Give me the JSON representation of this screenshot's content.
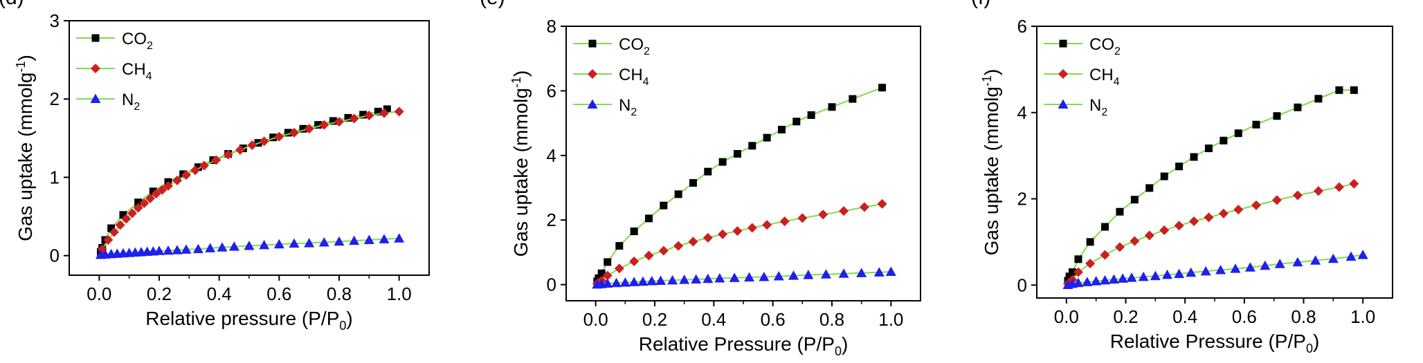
{
  "chart_data": [
    {
      "type": "line",
      "panel_label": "(d)",
      "xlabel": "Relative pressure (P/P",
      "xlabel_sub": "0",
      "xlabel_close": ")",
      "ylabel": "Gas uptake (mmolg",
      "ylabel_sup": "-1",
      "ylabel_close": ")",
      "xlim": [
        -0.1,
        1.1
      ],
      "ylim": [
        -0.25,
        3.0
      ],
      "xticks": [
        "0.0",
        "0.2",
        "0.4",
        "0.6",
        "0.8",
        "1.0"
      ],
      "yticks": [
        "0",
        "1",
        "2",
        "3"
      ],
      "legend_position": "top-left",
      "series": [
        {
          "name": "CO",
          "name_sub": "2",
          "marker": "square",
          "color": "#000000",
          "x": [
            0.005,
            0.01,
            0.02,
            0.04,
            0.08,
            0.13,
            0.18,
            0.23,
            0.28,
            0.33,
            0.38,
            0.43,
            0.48,
            0.53,
            0.58,
            0.63,
            0.68,
            0.73,
            0.78,
            0.83,
            0.88,
            0.93,
            0.96
          ],
          "y": [
            0.05,
            0.1,
            0.2,
            0.35,
            0.52,
            0.68,
            0.82,
            0.94,
            1.04,
            1.13,
            1.22,
            1.3,
            1.37,
            1.44,
            1.51,
            1.57,
            1.62,
            1.67,
            1.72,
            1.76,
            1.8,
            1.84,
            1.87
          ]
        },
        {
          "name": "CH",
          "name_sub": "4",
          "marker": "circle",
          "color": "#cc1f1f",
          "x": [
            0.01,
            0.03,
            0.05,
            0.07,
            0.09,
            0.11,
            0.13,
            0.15,
            0.17,
            0.19,
            0.21,
            0.23,
            0.26,
            0.29,
            0.32,
            0.35,
            0.39,
            0.43,
            0.47,
            0.51,
            0.55,
            0.6,
            0.65,
            0.7,
            0.75,
            0.8,
            0.85,
            0.9,
            0.95,
            1.0
          ],
          "y": [
            0.08,
            0.2,
            0.3,
            0.39,
            0.47,
            0.54,
            0.61,
            0.67,
            0.73,
            0.79,
            0.84,
            0.89,
            0.96,
            1.03,
            1.09,
            1.15,
            1.22,
            1.29,
            1.35,
            1.41,
            1.46,
            1.52,
            1.57,
            1.62,
            1.67,
            1.71,
            1.75,
            1.79,
            1.82,
            1.84
          ]
        },
        {
          "name": "N",
          "name_sub": "2",
          "marker": "triangle",
          "color": "#1f1fee",
          "x": [
            0.005,
            0.02,
            0.04,
            0.06,
            0.08,
            0.1,
            0.12,
            0.14,
            0.16,
            0.18,
            0.2,
            0.23,
            0.26,
            0.29,
            0.33,
            0.37,
            0.41,
            0.45,
            0.5,
            0.55,
            0.6,
            0.65,
            0.7,
            0.75,
            0.8,
            0.85,
            0.9,
            0.95,
            1.0
          ],
          "y": [
            0.01,
            0.015,
            0.02,
            0.025,
            0.03,
            0.035,
            0.04,
            0.045,
            0.05,
            0.055,
            0.06,
            0.065,
            0.07,
            0.078,
            0.085,
            0.095,
            0.105,
            0.115,
            0.125,
            0.135,
            0.145,
            0.155,
            0.16,
            0.17,
            0.18,
            0.19,
            0.2,
            0.21,
            0.22
          ]
        }
      ]
    },
    {
      "type": "line",
      "panel_label": "(e)",
      "xlabel": "Relative Pressure (P/P",
      "xlabel_sub": "0",
      "xlabel_close": ")",
      "ylabel": "Gas uptake (mmolg",
      "ylabel_sup": "-1",
      "ylabel_close": ")",
      "xlim": [
        -0.1,
        1.1
      ],
      "ylim": [
        -0.5,
        8.0
      ],
      "xticks": [
        "0.0",
        "0.2",
        "0.4",
        "0.6",
        "0.8",
        "1.0"
      ],
      "yticks": [
        "0",
        "2",
        "4",
        "6",
        "8"
      ],
      "legend_position": "top-left",
      "series": [
        {
          "name": "CO",
          "name_sub": "2",
          "marker": "square",
          "color": "#000000",
          "x": [
            0.005,
            0.01,
            0.02,
            0.04,
            0.08,
            0.13,
            0.18,
            0.23,
            0.28,
            0.33,
            0.38,
            0.43,
            0.48,
            0.53,
            0.58,
            0.63,
            0.68,
            0.73,
            0.8,
            0.87,
            0.97
          ],
          "y": [
            0.1,
            0.2,
            0.35,
            0.7,
            1.2,
            1.65,
            2.05,
            2.45,
            2.8,
            3.15,
            3.5,
            3.8,
            4.05,
            4.3,
            4.55,
            4.8,
            5.05,
            5.25,
            5.5,
            5.75,
            6.1
          ]
        },
        {
          "name": "CH",
          "name_sub": "4",
          "marker": "circle",
          "color": "#cc1f1f",
          "x": [
            0.005,
            0.01,
            0.02,
            0.04,
            0.08,
            0.13,
            0.18,
            0.23,
            0.28,
            0.33,
            0.38,
            0.43,
            0.48,
            0.53,
            0.58,
            0.64,
            0.7,
            0.77,
            0.84,
            0.91,
            0.97
          ],
          "y": [
            0.03,
            0.06,
            0.12,
            0.28,
            0.5,
            0.72,
            0.9,
            1.05,
            1.2,
            1.33,
            1.45,
            1.56,
            1.66,
            1.76,
            1.85,
            1.96,
            2.06,
            2.17,
            2.28,
            2.4,
            2.5
          ]
        },
        {
          "name": "N",
          "name_sub": "2",
          "marker": "triangle",
          "color": "#1f1fee",
          "x": [
            0.005,
            0.02,
            0.04,
            0.07,
            0.1,
            0.13,
            0.16,
            0.19,
            0.22,
            0.26,
            0.3,
            0.34,
            0.38,
            0.42,
            0.47,
            0.52,
            0.57,
            0.62,
            0.67,
            0.72,
            0.78,
            0.84,
            0.9,
            0.96,
            1.0
          ],
          "y": [
            0.005,
            0.02,
            0.035,
            0.05,
            0.065,
            0.08,
            0.095,
            0.11,
            0.12,
            0.135,
            0.15,
            0.165,
            0.18,
            0.195,
            0.21,
            0.225,
            0.24,
            0.26,
            0.28,
            0.3,
            0.32,
            0.34,
            0.36,
            0.38,
            0.4
          ]
        }
      ]
    },
    {
      "type": "line",
      "panel_label": "(f)",
      "xlabel": "Relative Pressure (P/P",
      "xlabel_sub": "0",
      "xlabel_close": ")",
      "ylabel": "Gas uptake (mmolg",
      "ylabel_sup": "-1",
      "ylabel_close": ")",
      "xlim": [
        -0.1,
        1.1
      ],
      "ylim": [
        -0.3,
        6.0
      ],
      "xticks": [
        "0.0",
        "0.2",
        "0.4",
        "0.6",
        "0.8",
        "1.0"
      ],
      "yticks": [
        "0",
        "2",
        "4",
        "6"
      ],
      "legend_position": "top-left",
      "series": [
        {
          "name": "CO",
          "name_sub": "2",
          "marker": "square",
          "color": "#000000",
          "x": [
            0.005,
            0.01,
            0.02,
            0.04,
            0.08,
            0.13,
            0.18,
            0.23,
            0.28,
            0.33,
            0.38,
            0.43,
            0.48,
            0.53,
            0.58,
            0.64,
            0.71,
            0.78,
            0.85,
            0.92,
            0.97
          ],
          "y": [
            0.1,
            0.2,
            0.3,
            0.6,
            1.0,
            1.35,
            1.7,
            1.98,
            2.25,
            2.52,
            2.75,
            2.97,
            3.17,
            3.35,
            3.52,
            3.72,
            3.92,
            4.12,
            4.32,
            4.52,
            4.52
          ]
        },
        {
          "name": "CH",
          "name_sub": "4",
          "marker": "circle",
          "color": "#cc1f1f",
          "x": [
            0.005,
            0.01,
            0.02,
            0.04,
            0.08,
            0.13,
            0.18,
            0.23,
            0.28,
            0.33,
            0.38,
            0.43,
            0.48,
            0.53,
            0.58,
            0.64,
            0.71,
            0.78,
            0.85,
            0.92,
            0.97
          ],
          "y": [
            0.03,
            0.06,
            0.12,
            0.3,
            0.5,
            0.7,
            0.88,
            1.02,
            1.15,
            1.27,
            1.38,
            1.48,
            1.57,
            1.66,
            1.75,
            1.85,
            1.97,
            2.08,
            2.18,
            2.27,
            2.35
          ]
        },
        {
          "name": "N",
          "name_sub": "2",
          "marker": "triangle",
          "color": "#1f1fee",
          "x": [
            0.005,
            0.02,
            0.04,
            0.07,
            0.1,
            0.13,
            0.16,
            0.19,
            0.22,
            0.26,
            0.3,
            0.34,
            0.38,
            0.42,
            0.47,
            0.52,
            0.57,
            0.62,
            0.67,
            0.72,
            0.78,
            0.84,
            0.9,
            0.96,
            1.0
          ],
          "y": [
            0.005,
            0.03,
            0.05,
            0.07,
            0.09,
            0.11,
            0.13,
            0.15,
            0.17,
            0.19,
            0.21,
            0.24,
            0.26,
            0.29,
            0.32,
            0.35,
            0.38,
            0.41,
            0.45,
            0.49,
            0.53,
            0.57,
            0.61,
            0.66,
            0.7
          ]
        }
      ]
    }
  ]
}
